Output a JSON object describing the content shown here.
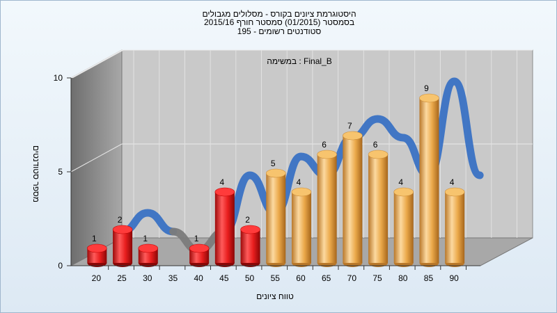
{
  "title_lines": [
    "היסטוגרמת ציונים בקורס - מסלולים מגבולים",
    "בסמסטר  (01/2015)  סמסטר חורף 2015/16",
    "סטודנטים רשומים - 195"
  ],
  "chart_data": {
    "type": "bar",
    "annotation": "במשימה : Final_B",
    "xlabel": "טווח ציונים",
    "ylabel": "מספר סטודנטים",
    "ylim": [
      0,
      10
    ],
    "yticks": [
      "0",
      "5",
      "10"
    ],
    "categories": [
      "20",
      "25",
      "30",
      "35",
      "40",
      "45",
      "50",
      "55",
      "60",
      "65",
      "70",
      "75",
      "80",
      "85",
      "90"
    ],
    "values": [
      1,
      2,
      1,
      0,
      1,
      4,
      2,
      5,
      4,
      6,
      7,
      6,
      4,
      9,
      4
    ],
    "data_labels": [
      "1",
      "2",
      "1",
      "",
      "1",
      "4",
      "2",
      "5",
      "4",
      "6",
      "7",
      "6",
      "4",
      "9",
      "4"
    ],
    "colors": {
      "fail": "#e81e1e",
      "pass": "#eba94a",
      "trend": "#3a72c4",
      "trend_zero": "#7b7b7b",
      "wall_back": "#c8c8c8",
      "wall_side": "#8c8c8c",
      "floor": "#a5a5a5"
    },
    "pass_threshold": "55",
    "grid": true
  }
}
